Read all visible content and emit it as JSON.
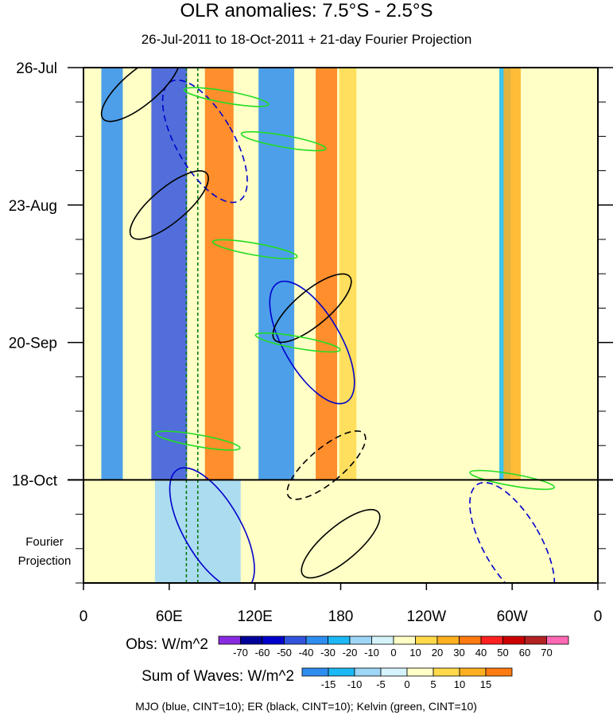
{
  "chart_data": {
    "type": "heatmap",
    "title": "OLR anomalies: 7.5°S - 2.5°S",
    "subtitle": "26-Jul-2011 to 18-Oct-2011 + 21-day Fourier Projection",
    "x_ticks": [
      "0",
      "60E",
      "120E",
      "180",
      "120W",
      "60W",
      "0"
    ],
    "x_range_deg_east": [
      0,
      360
    ],
    "y_ticks": [
      "26-Jul",
      "23-Aug",
      "20-Sep",
      "18-Oct"
    ],
    "y_dates": [
      "2011-07-26",
      "2011-08-23",
      "2011-09-20",
      "2011-10-18"
    ],
    "y_range": [
      "2011-07-26",
      "2011-11-08"
    ],
    "y_direction": "time increases downward",
    "projection_label": "Fourier Projection",
    "projection_start": "2011-10-18",
    "reference_lines_deg_east": [
      72,
      80
    ],
    "obs_colorbar": {
      "label": "Obs: W/m^2",
      "levels": [
        -70,
        -60,
        -50,
        -40,
        -30,
        -20,
        -10,
        0,
        10,
        20,
        30,
        40,
        50,
        60,
        70
      ],
      "colors": [
        "#8a2be2",
        "#000099",
        "#0000cc",
        "#3355dd",
        "#2e8ef0",
        "#1bb8f5",
        "#9dd6f7",
        "#d4f3fb",
        "#ffffc6",
        "#ffd94a",
        "#ffb020",
        "#ff7a10",
        "#ff2020",
        "#cc0000",
        "#b22222",
        "#ff69b4"
      ]
    },
    "waves_colorbar": {
      "label": "Sum of Waves: W/m^2",
      "levels": [
        -15,
        -10,
        -5,
        0,
        5,
        10,
        15
      ],
      "colors": [
        "#2e8ef0",
        "#1bb8f5",
        "#9dd6f7",
        "#d4f3fb",
        "#ffffc6",
        "#ffd94a",
        "#ffb020",
        "#ff7a10"
      ]
    },
    "contours_legend": "MJO (blue, CINT=10); ER (black, CINT=10); Kelvin (green, CINT=10)",
    "contour_colors": {
      "MJO": "#0000cc",
      "ER": "#000000",
      "Kelvin": "#22dd22"
    },
    "grid": false,
    "bands": [
      {
        "lon_deg_east": 20,
        "width_deg": 15,
        "time_start": "2011-07-26",
        "time_end": "2011-10-18",
        "value": -30
      },
      {
        "lon_deg_east": 60,
        "width_deg": 25,
        "time_start": "2011-07-26",
        "time_end": "2011-10-18",
        "value": -40
      },
      {
        "lon_deg_east": 95,
        "width_deg": 20,
        "time_start": "2011-07-26",
        "time_end": "2011-10-18",
        "value": 40
      },
      {
        "lon_deg_east": 135,
        "width_deg": 25,
        "time_start": "2011-07-26",
        "time_end": "2011-10-18",
        "value": -30
      },
      {
        "lon_deg_east": 170,
        "width_deg": 15,
        "time_start": "2011-07-26",
        "time_end": "2011-10-18",
        "value": 40
      },
      {
        "lon_deg_east": 185,
        "width_deg": 12,
        "time_start": "2011-07-26",
        "time_end": "2011-10-18",
        "value": 20
      },
      {
        "lon_deg_east": 295,
        "width_deg": 8,
        "time_start": "2011-07-26",
        "time_end": "2011-10-18",
        "value": -20
      },
      {
        "lon_deg_east": 300,
        "width_deg": 12,
        "time_start": "2011-07-26",
        "time_end": "2011-10-18",
        "value": 30
      },
      {
        "lon_deg_east": 80,
        "width_deg": 60,
        "time_start": "2011-10-18",
        "time_end": "2011-11-08",
        "value": -10
      },
      {
        "lon_deg_east": 260,
        "width_deg": 100,
        "time_start": "2011-10-18",
        "time_end": "2011-11-08",
        "value": 5
      }
    ],
    "mjo_contours": [
      {
        "lon_deg_east": 85,
        "date": "2011-08-10",
        "sign": "negative"
      },
      {
        "lon_deg_east": 160,
        "date": "2011-09-20",
        "sign": "positive"
      },
      {
        "lon_deg_east": 90,
        "date": "2011-10-28",
        "sign": "positive"
      },
      {
        "lon_deg_east": 300,
        "date": "2011-10-31",
        "sign": "negative"
      }
    ],
    "er_contours": [
      {
        "lon_deg_east": 40,
        "date": "2011-07-30",
        "sign": "positive"
      },
      {
        "lon_deg_east": 60,
        "date": "2011-08-23",
        "sign": "positive"
      },
      {
        "lon_deg_east": 160,
        "date": "2011-09-13",
        "sign": "positive"
      },
      {
        "lon_deg_east": 170,
        "date": "2011-10-15",
        "sign": "negative"
      },
      {
        "lon_deg_east": 180,
        "date": "2011-10-31",
        "sign": "positive"
      }
    ],
    "kelvin_contours": [
      {
        "lon_deg_east": 100,
        "date": "2011-08-01"
      },
      {
        "lon_deg_east": 140,
        "date": "2011-08-10"
      },
      {
        "lon_deg_east": 120,
        "date": "2011-09-01"
      },
      {
        "lon_deg_east": 150,
        "date": "2011-09-20"
      },
      {
        "lon_deg_east": 80,
        "date": "2011-10-10"
      },
      {
        "lon_deg_east": 300,
        "date": "2011-10-18"
      }
    ]
  }
}
